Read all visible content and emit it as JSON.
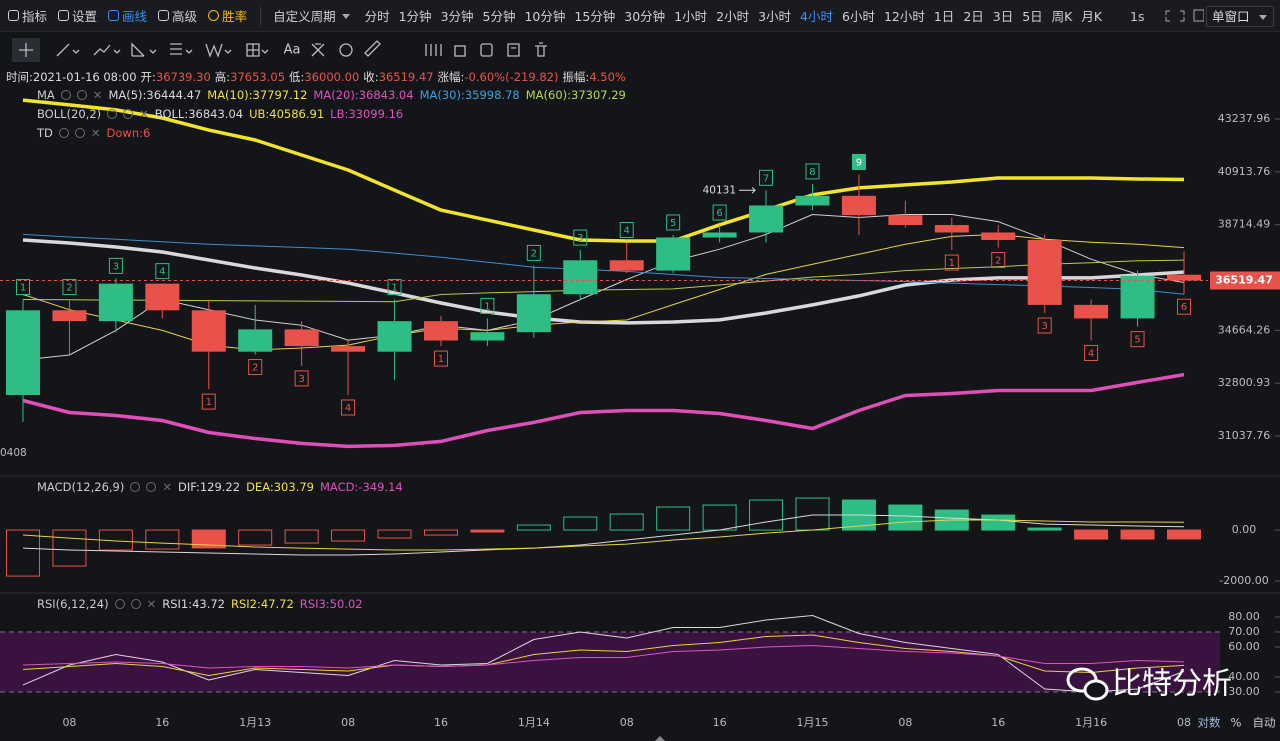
{
  "toolbar": {
    "tools": [
      "指标",
      "设置",
      "画线",
      "高级",
      "胜率"
    ],
    "active_tool": 2,
    "periods": [
      "自定义周期",
      "分时",
      "1分钟",
      "3分钟",
      "5分钟",
      "10分钟",
      "15分钟",
      "30分钟",
      "1小时",
      "2小时",
      "3小时",
      "4小时",
      "6小时",
      "12小时",
      "1日",
      "2日",
      "3日",
      "5日",
      "周K",
      "月K"
    ],
    "active_period": 11,
    "speed": "1s",
    "window": "单窗口"
  },
  "drawing_tools": {
    "text_tool": "Aa"
  },
  "info": [
    {
      "label": "时间:",
      "value": "2021-01-16 08:00"
    },
    {
      "label": "开:",
      "value": "36739.30"
    },
    {
      "label": "高:",
      "value": "37653.05"
    },
    {
      "label": "低:",
      "value": "36000.00"
    },
    {
      "label": "收:",
      "value": "36519.47"
    },
    {
      "label": "涨幅:",
      "value": "-0.60%(-219.82)"
    },
    {
      "label": "振幅:",
      "value": "4.50%"
    }
  ],
  "legends": [
    {
      "title": "MA",
      "items": [
        {
          "text": "MA(5):36444.47",
          "color": "#d9d9d9"
        },
        {
          "text": "MA(10):37797.12",
          "color": "#f0e040"
        },
        {
          "text": "MA(20):36843.04",
          "color": "#e050c0"
        },
        {
          "text": "MA(30):35998.78",
          "color": "#3aa0e0"
        },
        {
          "text": "MA(60):37307.29",
          "color": "#b6d94c"
        }
      ]
    },
    {
      "title": "BOLL(20,2)",
      "items": [
        {
          "text": "BOLL:36843.04",
          "color": "#d9d9d9"
        },
        {
          "text": "UB:40586.91",
          "color": "#f0e040"
        },
        {
          "text": "LB:33099.16",
          "color": "#e050c0"
        }
      ]
    },
    {
      "title": "TD",
      "items": [
        {
          "text": "Down:6",
          "color": "#e8524a"
        }
      ]
    },
    {
      "title": "MACD(12,26,9)",
      "items": [
        {
          "text": "DIF:129.22",
          "color": "#d9d9d9"
        },
        {
          "text": "DEA:303.79",
          "color": "#f0e040"
        },
        {
          "text": "MACD:-349.14",
          "color": "#e050c0"
        }
      ]
    },
    {
      "title": "RSI(6,12,24)",
      "items": [
        {
          "text": "RSI1:43.72",
          "color": "#d9d9d9"
        },
        {
          "text": "RSI2:47.72",
          "color": "#f0e040"
        },
        {
          "text": "RSI3:50.02",
          "color": "#e050c0"
        }
      ]
    }
  ],
  "watermark": "比特分析",
  "axis_options": [
    "对数",
    "%",
    "自动"
  ],
  "chart_data": [
    {
      "type": "candlestick",
      "up_color": "#2ebd85",
      "down_color": "#e8524a",
      "categories": [
        null,
        "08",
        null,
        "16",
        null,
        "1月13",
        null,
        "08",
        null,
        "16",
        null,
        "1月14",
        null,
        "08",
        null,
        "16",
        null,
        "1月15",
        null,
        "08",
        null,
        "16",
        null,
        "1月16",
        null,
        "08"
      ],
      "open": [
        32400,
        35400,
        35000,
        36400,
        35400,
        33900,
        34700,
        34100,
        33900,
        35000,
        34300,
        34600,
        36000,
        37300,
        36900,
        38200,
        38400,
        39500,
        39900,
        39100,
        38700,
        38400,
        38100,
        35600,
        35100,
        36739.3
      ],
      "high": [
        35800,
        35800,
        36600,
        36400,
        35800,
        35600,
        35000,
        34300,
        35800,
        35200,
        35100,
        37100,
        37700,
        38000,
        38300,
        38700,
        40131,
        40400,
        40800,
        39700,
        39000,
        38700,
        38300,
        35800,
        36900,
        37653.05
      ],
      "low": [
        31500,
        33800,
        34600,
        35100,
        32600,
        33800,
        33400,
        32400,
        32900,
        34100,
        34100,
        34400,
        35800,
        36800,
        36800,
        38000,
        38000,
        39300,
        38300,
        38600,
        37700,
        37800,
        35300,
        34300,
        34800,
        36000
      ],
      "close": [
        35400,
        35000,
        36400,
        35400,
        33900,
        34700,
        34100,
        33900,
        35000,
        34300,
        34600,
        36000,
        37300,
        36900,
        38200,
        38400,
        39500,
        39900,
        39100,
        38700,
        38400,
        38100,
        35600,
        35100,
        36700,
        36519.47
      ],
      "overlays": [
        {
          "color": "#f2e32b",
          "values": [
            44100,
            43880,
            43650,
            43280,
            42740,
            42300,
            41640,
            40990,
            40140,
            39310,
            38900,
            38500,
            38100,
            38060,
            38060,
            38710,
            39310,
            39940,
            40230,
            40360,
            40480,
            40650,
            40650,
            40650,
            40610,
            40586.91
          ]
        },
        {
          "color": "#d8d8d8",
          "values": [
            38100,
            37980,
            37820,
            37625,
            37310,
            37000,
            36730,
            36425,
            36045,
            35670,
            35335,
            35115,
            34970,
            34935,
            34970,
            35045,
            35300,
            35600,
            35935,
            36350,
            36540,
            36620,
            36620,
            36620,
            36730,
            36843.04
          ]
        },
        {
          "color": "#e04fb8",
          "values": [
            32215,
            31813,
            31714,
            31548,
            31155,
            30960,
            30800,
            30703,
            30735,
            30864,
            31220,
            31483,
            31813,
            31880,
            31880,
            31780,
            31548,
            31285,
            31880,
            32384,
            32452,
            32554,
            32554,
            32554,
            32828,
            33099.16
          ]
        },
        {
          "color": "#cfcfcf",
          "values": [
            33608,
            33784,
            34664,
            35800,
            35420,
            35043,
            34854,
            34312,
            34488,
            34854,
            34664,
            35043,
            35800,
            36558,
            37265,
            37734,
            38322,
            39130,
            39005,
            39130,
            39130,
            38838,
            38126,
            37343,
            36755,
            36444.47
          ]
        },
        {
          "color": "#e6d340",
          "values": [
            35990,
            35420,
            35043,
            34664,
            34136,
            33960,
            34030,
            34136,
            34488,
            34740,
            34664,
            34854,
            34970,
            35043,
            35610,
            36178,
            36755,
            37147,
            37539,
            37930,
            38244,
            38322,
            38126,
            38008,
            37930,
            37797.12
          ]
        },
        {
          "color": "#3a8fd0",
          "values": [
            38322,
            38220,
            38126,
            38030,
            37930,
            37865,
            37800,
            37734,
            37580,
            37421,
            37225,
            37029,
            36950,
            36870,
            36750,
            36633,
            36595,
            36558,
            36520,
            36480,
            36420,
            36365,
            36310,
            36254,
            36180,
            35998.78
          ]
        },
        {
          "color": "#b8c94a",
          "values": [
            35800,
            35790,
            35780,
            35770,
            35760,
            35750,
            35740,
            35730,
            35720,
            35990,
            36050,
            36100,
            36150,
            36178,
            36200,
            36350,
            36500,
            36650,
            36755,
            36900,
            36980,
            37050,
            37147,
            37200,
            37280,
            37307.29
          ]
        }
      ],
      "td_up": [
        1,
        2,
        3,
        4,
        null,
        null,
        null,
        null,
        1,
        null,
        1,
        2,
        3,
        4,
        5,
        6,
        7,
        8,
        9,
        null,
        null,
        null,
        null,
        null,
        null,
        null
      ],
      "td_down": [
        null,
        null,
        null,
        null,
        1,
        2,
        3,
        4,
        null,
        1,
        null,
        null,
        null,
        null,
        null,
        null,
        null,
        null,
        null,
        null,
        1,
        2,
        3,
        4,
        5,
        6
      ],
      "annotation": "40131",
      "edge_label": "0408",
      "ylim": [
        29800,
        45700
      ],
      "log_scale": true,
      "yticks": [
        43237.96,
        40913.76,
        38714.49,
        34664.26,
        32800.93,
        31037.76
      ]
    },
    {
      "type": "bar",
      "up_color": "#2ebd85",
      "down_color": "#e8524a",
      "values": [
        -1804,
        -1412,
        -784,
        -745,
        -700,
        -588,
        -510,
        -431,
        -314,
        -196,
        -78,
        196,
        510,
        627,
        902,
        980,
        1176,
        1254,
        1176,
        980,
        784,
        588,
        78,
        -353,
        -353,
        -349.14
      ],
      "filled": [
        false,
        false,
        false,
        false,
        true,
        false,
        false,
        false,
        false,
        false,
        true,
        false,
        false,
        false,
        false,
        false,
        false,
        false,
        true,
        true,
        true,
        true,
        true,
        true,
        true,
        true
      ],
      "lines": [
        {
          "color": "#d9d9d9",
          "values": [
            -706,
            -784,
            -823,
            -862,
            -900,
            -940,
            -980,
            -980,
            -940,
            -860,
            -780,
            -706,
            -588,
            -392,
            -196,
            0,
            314,
            588,
            588,
            549,
            470,
            392,
            235,
            196,
            157,
            129.22
          ]
        },
        {
          "color": "#e6d340",
          "values": [
            -196,
            -314,
            -431,
            -510,
            -588,
            -666,
            -706,
            -745,
            -784,
            -784,
            -745,
            -706,
            -627,
            -549,
            -392,
            -274,
            -118,
            0,
            157,
            314,
            392,
            392,
            353,
            314,
            314,
            303.79
          ]
        }
      ],
      "ylim": [
        -2350,
        2040
      ],
      "yticks": [
        {
          "value": 0,
          "label": "0.00"
        },
        {
          "value": -2000,
          "label": "-2000.00"
        }
      ]
    },
    {
      "type": "line",
      "band": [
        30,
        70
      ],
      "band_color": "#3a1240",
      "series": [
        {
          "color": "#d9d9d9",
          "values": [
            34.7,
            48,
            55,
            50,
            38,
            45,
            43,
            41,
            51,
            48,
            49,
            65,
            70,
            66,
            73,
            73,
            78,
            81,
            69,
            63,
            59,
            55,
            32,
            30,
            32,
            43.72
          ]
        },
        {
          "color": "#e6d340",
          "values": [
            45,
            47,
            49,
            47,
            41,
            46,
            45,
            44,
            48,
            47,
            48,
            55,
            58,
            57,
            61,
            63,
            67,
            68,
            63,
            59,
            57,
            54,
            44,
            43,
            46,
            47.72
          ]
        },
        {
          "color": "#e050c0",
          "values": [
            48,
            49,
            50,
            49,
            46,
            47,
            47,
            46,
            48,
            47,
            48,
            51,
            53,
            53,
            57,
            58,
            60,
            61,
            59,
            57,
            56,
            54,
            49,
            49,
            51,
            50.02
          ]
        }
      ],
      "ylim": [
        19.3,
        93.3
      ],
      "yticks": [
        {
          "value": 80,
          "label": "80.00"
        },
        {
          "value": 70,
          "label": "70.00"
        },
        {
          "value": 60,
          "label": "60.00"
        },
        {
          "value": 40,
          "label": "40.00"
        },
        {
          "value": 30,
          "label": "30.00"
        }
      ]
    }
  ]
}
